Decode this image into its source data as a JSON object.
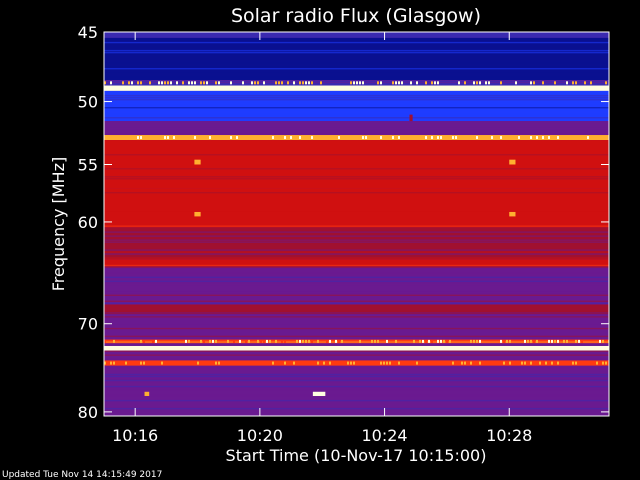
{
  "chart_data": {
    "type": "heatmap",
    "title": "Solar radio Flux (Glasgow)",
    "xlabel": "Start Time (10-Nov-17 10:15:00)",
    "ylabel": "Frequency [MHz]",
    "x_unit": "minutes",
    "xlim_minutes": [
      0,
      16.2
    ],
    "x_ticks": [
      {
        "minute": 1,
        "label": "10:16"
      },
      {
        "minute": 5,
        "label": "10:20"
      },
      {
        "minute": 9,
        "label": "10:24"
      },
      {
        "minute": 13,
        "label": "10:28"
      }
    ],
    "ylim_mhz": [
      45,
      80.5
    ],
    "y_ticks": [
      45,
      50,
      55,
      60,
      70,
      80
    ],
    "y_scale": "log",
    "colormap": [
      "#000033",
      "#0a1090",
      "#1f3cff",
      "#3a2ab0",
      "#6a1a90",
      "#a01030",
      "#d01010",
      "#ff3a10",
      "#ffb030",
      "#ffffe0"
    ],
    "background_level": 0.45,
    "bands": [
      {
        "f1": 45.0,
        "f2": 45.4,
        "level": 0.3
      },
      {
        "f1": 45.4,
        "f2": 48.4,
        "level": 0.15
      },
      {
        "f1": 48.4,
        "f2": 48.8,
        "level": 0.35
      },
      {
        "f1": 48.8,
        "f2": 49.2,
        "level": 0.98
      },
      {
        "f1": 49.2,
        "f2": 51.5,
        "level": 0.26
      },
      {
        "f1": 51.5,
        "f2": 52.6,
        "level": 0.4
      },
      {
        "f1": 52.6,
        "f2": 53.0,
        "level": 0.85
      },
      {
        "f1": 53.0,
        "f2": 57.0,
        "level": 0.62
      },
      {
        "f1": 57.0,
        "f2": 60.5,
        "level": 0.66
      },
      {
        "f1": 60.5,
        "f2": 63.5,
        "level": 0.52
      },
      {
        "f1": 63.5,
        "f2": 64.2,
        "level": 0.7
      },
      {
        "f1": 64.2,
        "f2": 68.0,
        "level": 0.45
      },
      {
        "f1": 68.0,
        "f2": 69.0,
        "level": 0.55
      },
      {
        "f1": 69.0,
        "f2": 71.7,
        "level": 0.45
      },
      {
        "f1": 71.7,
        "f2": 72.1,
        "level": 0.78
      },
      {
        "f1": 72.4,
        "f2": 72.9,
        "level": 0.97
      },
      {
        "f1": 72.9,
        "f2": 74.0,
        "level": 0.48
      },
      {
        "f1": 74.0,
        "f2": 74.6,
        "level": 0.74
      },
      {
        "f1": 74.6,
        "f2": 80.5,
        "level": 0.4
      }
    ],
    "bursts": [
      {
        "t1": 2.9,
        "t2": 3.1,
        "f1": 54.6,
        "f2": 55.0,
        "level": 0.85
      },
      {
        "t1": 2.9,
        "t2": 3.1,
        "f1": 59.1,
        "f2": 59.5,
        "level": 0.85
      },
      {
        "t1": 13.0,
        "t2": 13.2,
        "f1": 54.6,
        "f2": 55.0,
        "level": 0.85
      },
      {
        "t1": 13.0,
        "t2": 13.2,
        "f1": 59.1,
        "f2": 59.5,
        "level": 0.85
      },
      {
        "t1": 1.3,
        "t2": 1.45,
        "f1": 77.6,
        "f2": 78.1,
        "level": 0.92
      },
      {
        "t1": 6.7,
        "t2": 7.1,
        "f1": 77.6,
        "f2": 78.1,
        "level": 0.95
      },
      {
        "t1": 9.8,
        "t2": 9.9,
        "f1": 51.0,
        "f2": 51.5,
        "level": 0.6
      }
    ]
  },
  "footer": {
    "updated": "Updated Tue Nov 14 14:15:49 2017"
  }
}
